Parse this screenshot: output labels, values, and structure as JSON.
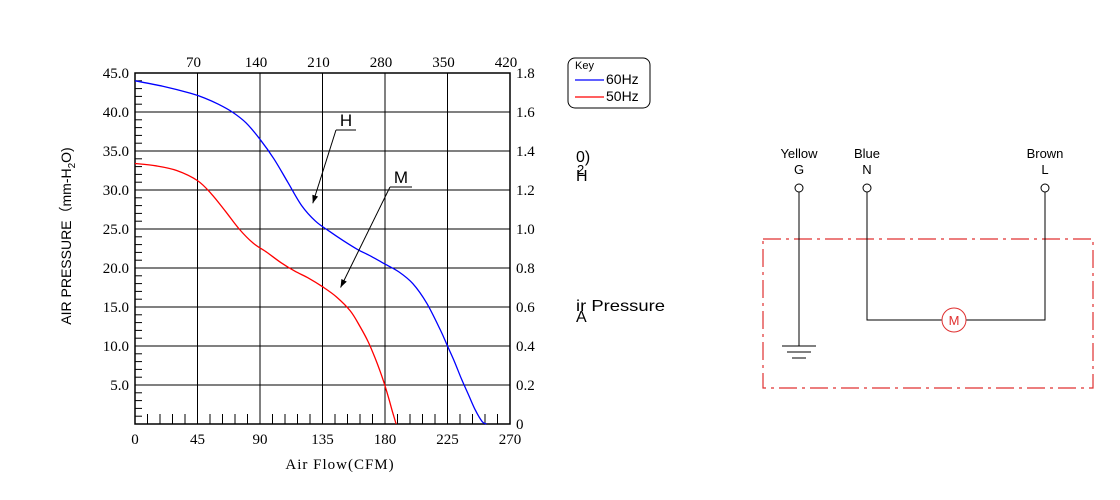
{
  "chart_data": {
    "type": "line",
    "ylabel": "AIR PRESSURE（mm-H2O)",
    "ylabel_parts": [
      "AIR PRESSURE（mm-H",
      "2",
      "O)"
    ],
    "xlabel": "Air Flow(CFM)",
    "xlim": [
      0,
      270
    ],
    "ylim": [
      0,
      45
    ],
    "x_ticks_bottom": [
      "0",
      "45",
      "90",
      "135",
      "180",
      "225",
      "270"
    ],
    "x_ticks_top": [
      "70",
      "140",
      "210",
      "280",
      "350",
      "420"
    ],
    "y_ticks_left": [
      "5.0",
      "10.0",
      "15.0",
      "20.0",
      "25.0",
      "30.0",
      "35.0",
      "40.0",
      "45.0"
    ],
    "y_ticks_left_values": [
      5,
      10,
      15,
      20,
      25,
      30,
      35,
      40,
      45
    ],
    "y_ticks_right": [
      "0",
      "0.2",
      "0.4",
      "0.6",
      "0.8",
      "1.0",
      "1.2",
      "1.4",
      "1.6",
      "1.8"
    ],
    "grid": true,
    "legend": {
      "title": "Key",
      "placement": "top-right",
      "entries": [
        {
          "label": "60Hz",
          "color": "#0000ff"
        },
        {
          "label": "50Hz",
          "color": "#ff0000"
        }
      ]
    },
    "series": [
      {
        "curve_label": "H",
        "legend_label": "60Hz",
        "color": "#0000ff",
        "x": [
          0,
          20,
          40,
          50,
          60,
          70,
          80,
          90,
          100,
          110,
          120,
          130,
          140,
          150,
          160,
          170,
          180,
          190,
          200,
          210,
          220,
          225,
          230,
          235,
          240,
          245,
          250,
          253
        ],
        "y": [
          44,
          43.3,
          42.4,
          41.8,
          41,
          40,
          38.6,
          36.5,
          34,
          31,
          28,
          26,
          24.7,
          23.5,
          22.4,
          21.5,
          20.5,
          19.5,
          18,
          15.5,
          12,
          10,
          8,
          5.8,
          3.8,
          1.8,
          0.3,
          0
        ]
      },
      {
        "curve_label": "M",
        "legend_label": "50Hz",
        "color": "#ff0000",
        "x": [
          0,
          15,
          30,
          45,
          55,
          65,
          75,
          85,
          95,
          105,
          115,
          125,
          135,
          145,
          155,
          162,
          168,
          173,
          177,
          180,
          183,
          185,
          187,
          188
        ],
        "y": [
          33.4,
          33.1,
          32.5,
          31.2,
          29.5,
          27.3,
          25,
          23.2,
          22,
          20.7,
          19.6,
          18.7,
          17.6,
          16.3,
          14.5,
          12.5,
          10.5,
          8.4,
          6.5,
          4.9,
          3.1,
          1.8,
          0.6,
          0
        ]
      }
    ],
    "annotations": [
      {
        "text": "H",
        "points_to": [
          128,
          28.3
        ]
      },
      {
        "text": "M",
        "points_to": [
          148,
          17.5
        ]
      }
    ]
  },
  "clipped_text": {
    "fragment_1_top": "0)",
    "fragment_1_mid": "2",
    "fragment_1_bottom": "H",
    "fragment_2_top": "ir Pressure",
    "fragment_2_bottom": "A"
  },
  "wiring": {
    "terminals": [
      {
        "wire_color": "Yellow",
        "code": "G"
      },
      {
        "wire_color": "Blue",
        "code": "N"
      },
      {
        "wire_color": "Brown",
        "code": "L"
      }
    ],
    "motor_label": "M",
    "box_color": "#e03030"
  }
}
